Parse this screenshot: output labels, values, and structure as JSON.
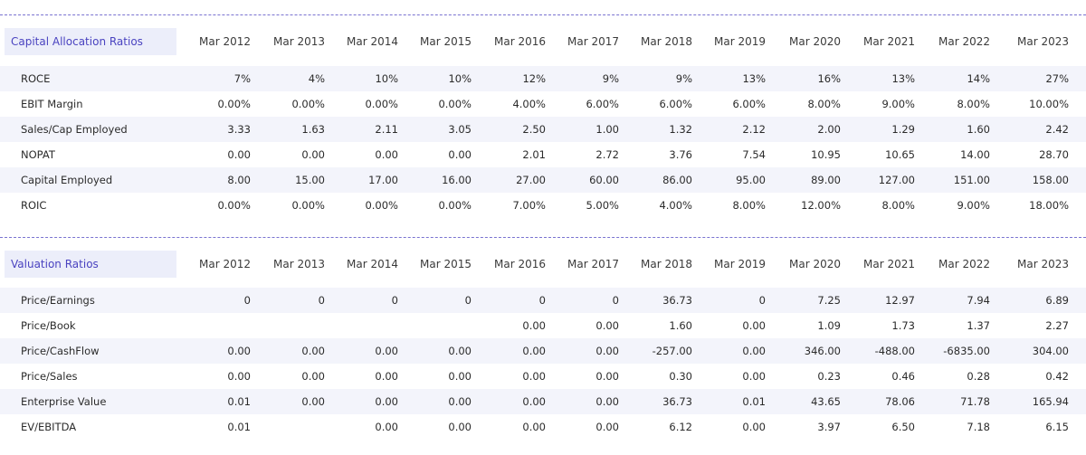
{
  "capital": {
    "title": "Capital Allocation Ratios",
    "years": [
      "Mar 2012",
      "Mar 2013",
      "Mar 2014",
      "Mar 2015",
      "Mar 2016",
      "Mar 2017",
      "Mar 2018",
      "Mar 2019",
      "Mar 2020",
      "Mar 2021",
      "Mar 2022",
      "Mar 2023"
    ],
    "rows": [
      {
        "label": "ROCE",
        "values": [
          "7%",
          "4%",
          "10%",
          "10%",
          "12%",
          "9%",
          "9%",
          "13%",
          "16%",
          "13%",
          "14%",
          "27%"
        ]
      },
      {
        "label": "EBIT Margin",
        "values": [
          "0.00%",
          "0.00%",
          "0.00%",
          "0.00%",
          "4.00%",
          "6.00%",
          "6.00%",
          "6.00%",
          "8.00%",
          "9.00%",
          "8.00%",
          "10.00%"
        ]
      },
      {
        "label": "Sales/Cap Employed",
        "values": [
          "3.33",
          "1.63",
          "2.11",
          "3.05",
          "2.50",
          "1.00",
          "1.32",
          "2.12",
          "2.00",
          "1.29",
          "1.60",
          "2.42"
        ]
      },
      {
        "label": "NOPAT",
        "values": [
          "0.00",
          "0.00",
          "0.00",
          "0.00",
          "2.01",
          "2.72",
          "3.76",
          "7.54",
          "10.95",
          "10.65",
          "14.00",
          "28.70"
        ]
      },
      {
        "label": "Capital Employed",
        "values": [
          "8.00",
          "15.00",
          "17.00",
          "16.00",
          "27.00",
          "60.00",
          "86.00",
          "95.00",
          "89.00",
          "127.00",
          "151.00",
          "158.00"
        ]
      },
      {
        "label": "ROIC",
        "values": [
          "0.00%",
          "0.00%",
          "0.00%",
          "0.00%",
          "7.00%",
          "5.00%",
          "4.00%",
          "8.00%",
          "12.00%",
          "8.00%",
          "9.00%",
          "18.00%"
        ]
      }
    ]
  },
  "valuation": {
    "title": "Valuation Ratios",
    "years": [
      "Mar 2012",
      "Mar 2013",
      "Mar 2014",
      "Mar 2015",
      "Mar 2016",
      "Mar 2017",
      "Mar 2018",
      "Mar 2019",
      "Mar 2020",
      "Mar 2021",
      "Mar 2022",
      "Mar 2023"
    ],
    "rows": [
      {
        "label": "Price/Earnings",
        "values": [
          "0",
          "0",
          "0",
          "0",
          "0",
          "0",
          "36.73",
          "0",
          "7.25",
          "12.97",
          "7.94",
          "6.89"
        ]
      },
      {
        "label": "Price/Book",
        "values": [
          "",
          "",
          "",
          "",
          "0.00",
          "0.00",
          "1.60",
          "0.00",
          "1.09",
          "1.73",
          "1.37",
          "2.27"
        ]
      },
      {
        "label": "Price/CashFlow",
        "values": [
          "0.00",
          "0.00",
          "0.00",
          "0.00",
          "0.00",
          "0.00",
          "-257.00",
          "0.00",
          "346.00",
          "-488.00",
          "-6835.00",
          "304.00"
        ]
      },
      {
        "label": "Price/Sales",
        "values": [
          "0.00",
          "0.00",
          "0.00",
          "0.00",
          "0.00",
          "0.00",
          "0.30",
          "0.00",
          "0.23",
          "0.46",
          "0.28",
          "0.42"
        ]
      },
      {
        "label": "Enterprise Value",
        "values": [
          "0.01",
          "0.00",
          "0.00",
          "0.00",
          "0.00",
          "0.00",
          "36.73",
          "0.01",
          "43.65",
          "78.06",
          "71.78",
          "165.94"
        ]
      },
      {
        "label": "EV/EBITDA",
        "values": [
          "0.01",
          "",
          "0.00",
          "0.00",
          "0.00",
          "0.00",
          "6.12",
          "0.00",
          "3.97",
          "6.50",
          "7.18",
          "6.15"
        ]
      }
    ]
  }
}
